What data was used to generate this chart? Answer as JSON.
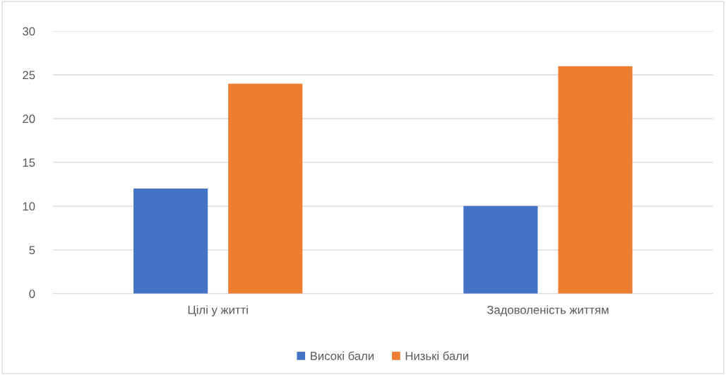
{
  "chart_data": {
    "type": "bar",
    "categories": [
      "Цілі у житті",
      "Задоволеність життям"
    ],
    "series": [
      {
        "name": "Високі бали",
        "color": "#4472c4",
        "values": [
          12,
          10
        ]
      },
      {
        "name": "Низькі бали",
        "color": "#ed7d31",
        "values": [
          24,
          26
        ]
      }
    ],
    "ylim": [
      0,
      30
    ],
    "yticks": [
      0,
      5,
      10,
      15,
      20,
      25,
      30
    ],
    "grid": "y",
    "legend": "bottom"
  }
}
